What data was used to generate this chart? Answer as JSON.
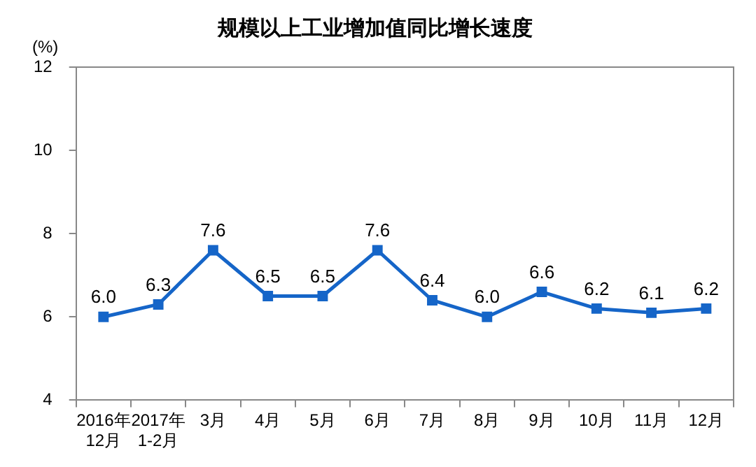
{
  "chart_data": {
    "type": "line",
    "title": "规模以上工业增加值同比增长速度",
    "ylabel": "(%)",
    "categories": [
      "2016年\n12月",
      "2017年\n1-2月",
      "3月",
      "4月",
      "5月",
      "6月",
      "7月",
      "8月",
      "9月",
      "10月",
      "11月",
      "12月"
    ],
    "series": [
      {
        "color": "#1565c8",
        "values": [
          6.0,
          6.3,
          7.6,
          6.5,
          6.5,
          7.6,
          6.4,
          6.0,
          6.6,
          6.2,
          6.1,
          6.2
        ],
        "value_labels": [
          "6.0",
          "6.3",
          "7.6",
          "6.5",
          "6.5",
          "7.6",
          "6.4",
          "6.0",
          "6.6",
          "6.2",
          "6.1",
          "6.2"
        ]
      }
    ],
    "ylim": [
      4,
      12
    ],
    "yticks": [
      4,
      6,
      8,
      10,
      12
    ],
    "grid": false,
    "legend": false,
    "marker": "square",
    "line_style": "solid"
  }
}
